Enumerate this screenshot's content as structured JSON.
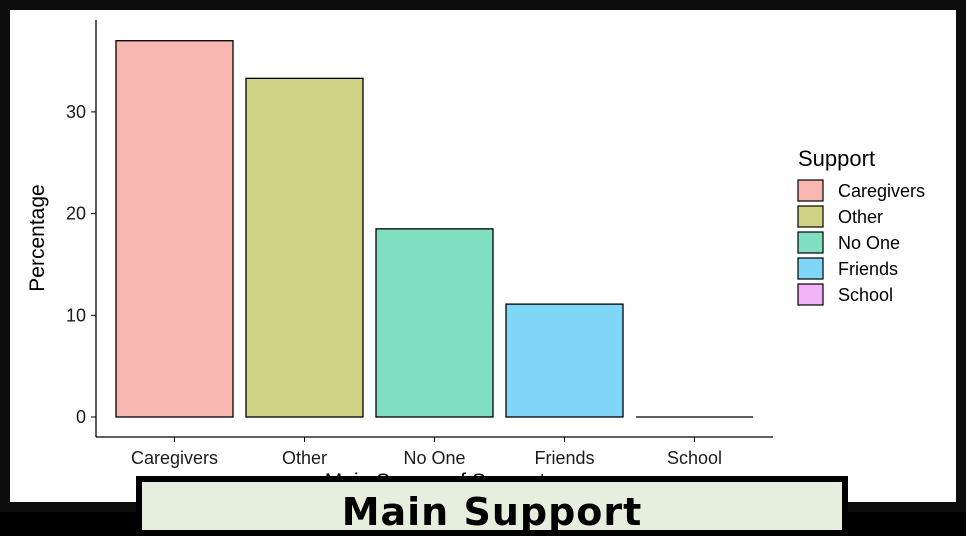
{
  "chart_data": {
    "type": "bar",
    "categories": [
      "Caregivers",
      "Other",
      "No One",
      "Friends",
      "School"
    ],
    "values": [
      37.0,
      33.3,
      18.5,
      11.1,
      0.0
    ],
    "colors": [
      "#f8b7b1",
      "#cfd283",
      "#80dfc1",
      "#7fd6f6",
      "#f2b2f6"
    ],
    "ylabel": "Percentage",
    "xlabel": "Main Source of Support",
    "ylim": [
      0,
      38
    ],
    "yticks": [
      0,
      10,
      20,
      30
    ],
    "grid": false,
    "legend": {
      "title": "Support",
      "placement": "right",
      "entries": [
        "Caregivers",
        "Other",
        "No One",
        "Friends",
        "School"
      ]
    }
  },
  "caption": "Main Support"
}
